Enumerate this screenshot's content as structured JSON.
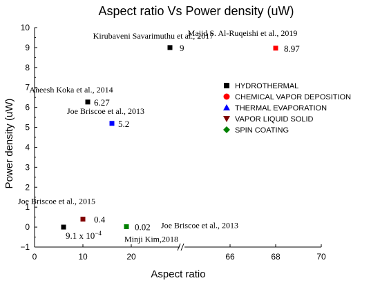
{
  "chart_data": {
    "type": "scatter",
    "title": "Aspect ratio Vs Power density (uW)",
    "xlabel": "Aspect ratio",
    "ylabel": "Power density (uW)",
    "ylim": [
      -1,
      10
    ],
    "y_ticks": [
      "−1",
      "0",
      "1",
      "2",
      "3",
      "4",
      "5",
      "6",
      "7",
      "8",
      "9",
      "10"
    ],
    "axis_break": {
      "before": 30,
      "after": 62
    },
    "x_ticks_left": [
      "0",
      "10",
      "20"
    ],
    "x_ticks_right": [
      "66",
      "68",
      "70"
    ],
    "legend_position": "right",
    "legend": [
      {
        "name": "HYDROTHERMAL",
        "marker": "square",
        "color": "#000000"
      },
      {
        "name": "CHEMICAL VAPOR DEPOSITION",
        "marker": "circle",
        "color": "#ff0000"
      },
      {
        "name": "THERMAL EVAPORATION",
        "marker": "triangle-up",
        "color": "#0000ff"
      },
      {
        "name": "VAPOR LIQUID SOLID",
        "marker": "triangle-down",
        "color": "#800000"
      },
      {
        "name": "SPIN COATING",
        "marker": "diamond",
        "color": "#008000"
      }
    ],
    "points": [
      {
        "x": 28,
        "y": 9,
        "value_label": "9",
        "author": "Kirubaveni Savarimuthu et al., 2017",
        "color": "#000000"
      },
      {
        "x": 68,
        "y": 8.97,
        "value_label": "8.97",
        "author": "Majid S. Al-Ruqeishi et al., 2019",
        "color": "#ff0000"
      },
      {
        "x": 11,
        "y": 6.27,
        "value_label": "6.27",
        "author": "Aneesh Koka et al., 2014",
        "color": "#000000"
      },
      {
        "x": 16,
        "y": 5.2,
        "value_label": "5.2",
        "author": "Joe Briscoe et al., 2013",
        "color": "#0000ff"
      },
      {
        "x": 10,
        "y": 0.4,
        "value_label": "0.4",
        "author": "Joe Briscoe et al., 2015",
        "color": "#800000"
      },
      {
        "x": 6,
        "y": 0.0009,
        "value_label": "9.1 x 10",
        "value_exp": "−4",
        "author": "",
        "color": "#000000"
      },
      {
        "x": 19,
        "y": 0.02,
        "value_label": "0.02",
        "author": "Joe Briscoe et al., 2013",
        "color": "#008000"
      },
      {
        "x": 19,
        "y": 0.02,
        "value_label": "",
        "author": "Minji Kim,2018",
        "color": "#008000"
      }
    ]
  }
}
